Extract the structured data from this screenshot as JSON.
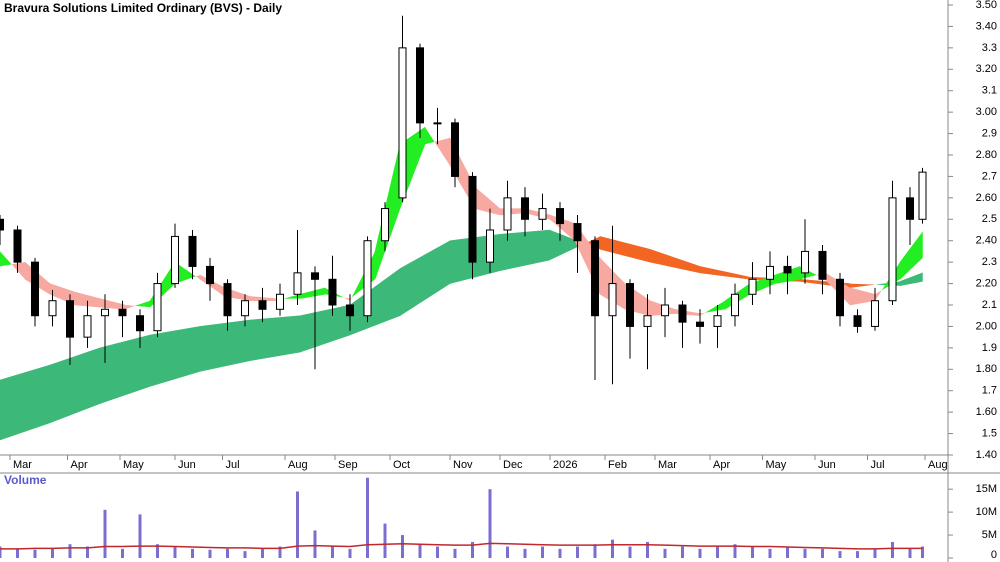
{
  "chart_data": {
    "type": "candlestick",
    "title": "Bravura Solutions Limited Ordinary (BVS) - Daily",
    "x": [
      0,
      7,
      14,
      21,
      28,
      35,
      42,
      49,
      56,
      63,
      70,
      77,
      84,
      91,
      98,
      105,
      112,
      119,
      126,
      133,
      140,
      147,
      154,
      161,
      168,
      175,
      182,
      189,
      196,
      203,
      210,
      217,
      224,
      231,
      238,
      245,
      252,
      259,
      266,
      273,
      280,
      287,
      294,
      301,
      308,
      315,
      322,
      329,
      336,
      343,
      350,
      357,
      364,
      369
    ],
    "open": [
      2.5,
      2.45,
      2.3,
      2.05,
      2.12,
      1.95,
      2.05,
      2.08,
      2.05,
      1.98,
      2.2,
      2.42,
      2.28,
      2.2,
      2.05,
      2.12,
      2.08,
      2.15,
      2.25,
      2.22,
      2.1,
      2.05,
      2.4,
      2.6,
      3.3,
      2.95,
      2.95,
      2.7,
      2.3,
      2.45,
      2.6,
      2.5,
      2.55,
      2.48,
      2.4,
      2.05,
      2.2,
      2.0,
      2.05,
      2.1,
      2.02,
      2.0,
      2.05,
      2.15,
      2.22,
      2.28,
      2.25,
      2.35,
      2.22,
      2.05,
      2.0,
      2.12,
      2.6,
      2.5
    ],
    "high": [
      2.52,
      2.47,
      2.32,
      2.17,
      2.15,
      2.12,
      2.15,
      2.12,
      2.08,
      2.25,
      2.48,
      2.45,
      2.32,
      2.22,
      2.15,
      2.18,
      2.2,
      2.45,
      2.28,
      2.33,
      2.15,
      2.42,
      2.58,
      3.45,
      3.32,
      3.02,
      2.97,
      2.72,
      2.55,
      2.68,
      2.65,
      2.62,
      2.58,
      2.52,
      2.42,
      2.47,
      2.22,
      2.15,
      2.18,
      2.12,
      2.08,
      2.1,
      2.2,
      2.3,
      2.35,
      2.33,
      2.5,
      2.38,
      2.25,
      2.08,
      2.18,
      2.68,
      2.65,
      2.74
    ],
    "low": [
      2.38,
      2.25,
      2.0,
      2.0,
      1.82,
      1.9,
      1.83,
      1.95,
      1.9,
      1.95,
      2.18,
      2.22,
      2.12,
      1.98,
      2.0,
      2.02,
      2.05,
      2.1,
      1.8,
      2.05,
      1.98,
      2.02,
      2.35,
      2.58,
      2.88,
      2.85,
      2.65,
      2.22,
      2.25,
      2.4,
      2.42,
      2.45,
      2.4,
      2.25,
      1.75,
      1.73,
      1.85,
      1.8,
      1.95,
      1.9,
      1.92,
      1.9,
      2.0,
      2.1,
      2.15,
      2.15,
      2.2,
      2.15,
      2.0,
      1.97,
      1.98,
      2.1,
      2.38,
      2.48
    ],
    "close": [
      2.45,
      2.3,
      2.05,
      2.12,
      1.95,
      2.05,
      2.08,
      2.05,
      1.98,
      2.2,
      2.42,
      2.28,
      2.2,
      2.05,
      2.12,
      2.08,
      2.15,
      2.25,
      2.22,
      2.1,
      2.05,
      2.4,
      2.55,
      3.3,
      2.95,
      2.95,
      2.7,
      2.3,
      2.45,
      2.6,
      2.5,
      2.55,
      2.48,
      2.4,
      2.05,
      2.2,
      2.0,
      2.05,
      2.1,
      2.02,
      2.0,
      2.05,
      2.15,
      2.22,
      2.28,
      2.25,
      2.35,
      2.22,
      2.05,
      2.0,
      2.12,
      2.6,
      2.5,
      2.72
    ],
    "up_color": "#ffffff",
    "down_color": "#000000",
    "xlim": [
      0,
      375
    ],
    "xticks": [
      {
        "value": 4,
        "label": "Mar"
      },
      {
        "value": 27,
        "label": "Apr"
      },
      {
        "value": 48,
        "label": "May"
      },
      {
        "value": 70,
        "label": "Jun"
      },
      {
        "value": 89,
        "label": "Jul"
      },
      {
        "value": 114,
        "label": "Aug"
      },
      {
        "value": 134,
        "label": "Sep"
      },
      {
        "value": 156,
        "label": "Oct"
      },
      {
        "value": 180,
        "label": "Nov"
      },
      {
        "value": 200,
        "label": "Dec"
      },
      {
        "value": 220,
        "label": "2026"
      },
      {
        "value": 242,
        "label": "Feb"
      },
      {
        "value": 262,
        "label": "Mar"
      },
      {
        "value": 284,
        "label": "Apr"
      },
      {
        "value": 305,
        "label": "May"
      },
      {
        "value": 326,
        "label": "Jun"
      },
      {
        "value": 347,
        "label": "Jul"
      },
      {
        "value": 370,
        "label": "Aug"
      }
    ],
    "ylim": [
      1.4,
      3.5
    ],
    "yticks": [
      {
        "value": 1.4,
        "label": "1.40"
      },
      1.5,
      {
        "value": 1.6,
        "label": "1.60"
      },
      1.7,
      {
        "value": 1.8,
        "label": "1.80"
      },
      1.9,
      {
        "value": 2.0,
        "label": "2.00"
      },
      2.1,
      {
        "value": 2.2,
        "label": "2.20"
      },
      2.3,
      {
        "value": 2.4,
        "label": "2.40"
      },
      2.5,
      {
        "value": 2.6,
        "label": "2.60"
      },
      2.7,
      {
        "value": 2.8,
        "label": "2.80"
      },
      2.9,
      {
        "value": 3.0,
        "label": "3.00"
      },
      3.1,
      {
        "value": 3.2,
        "label": "3.20"
      },
      3.3,
      {
        "value": 3.4,
        "label": "3.40"
      },
      {
        "value": 3.5,
        "label": "3.50"
      }
    ],
    "ribbons": [
      {
        "x": [
          0,
          20,
          40,
          60,
          80,
          100,
          120,
          140,
          160,
          180,
          200,
          220,
          240,
          260,
          280,
          300,
          320,
          340,
          360,
          369
        ],
        "fast": [
          1.75,
          1.82,
          1.9,
          1.96,
          2.0,
          2.03,
          2.05,
          2.1,
          2.27,
          2.4,
          2.43,
          2.45,
          2.36,
          2.3,
          2.25,
          2.22,
          2.21,
          2.18,
          2.21,
          2.25
        ],
        "slow": [
          1.47,
          1.55,
          1.64,
          1.72,
          1.79,
          1.84,
          1.88,
          1.96,
          2.05,
          2.2,
          2.26,
          2.31,
          2.42,
          2.36,
          2.28,
          2.23,
          2.22,
          2.2,
          2.19,
          2.21
        ],
        "up_color": "#3cb878",
        "down_color": "#f26522"
      },
      {
        "x": [
          0,
          10,
          20,
          30,
          40,
          50,
          60,
          70,
          80,
          90,
          100,
          110,
          120,
          130,
          140,
          150,
          160,
          170,
          180,
          190,
          200,
          210,
          220,
          230,
          240,
          250,
          260,
          270,
          280,
          290,
          300,
          310,
          320,
          330,
          340,
          350,
          360,
          369
        ],
        "fast": [
          2.35,
          2.22,
          2.15,
          2.1,
          2.09,
          2.08,
          2.12,
          2.3,
          2.22,
          2.14,
          2.12,
          2.12,
          2.15,
          2.18,
          2.12,
          2.35,
          2.85,
          2.93,
          2.75,
          2.55,
          2.52,
          2.53,
          2.5,
          2.4,
          2.15,
          2.08,
          2.05,
          2.06,
          2.05,
          2.12,
          2.2,
          2.24,
          2.28,
          2.22,
          2.1,
          2.12,
          2.3,
          2.44
        ],
        "slow": [
          2.28,
          2.3,
          2.2,
          2.16,
          2.13,
          2.1,
          2.09,
          2.2,
          2.24,
          2.18,
          2.14,
          2.13,
          2.13,
          2.15,
          2.13,
          2.22,
          2.55,
          2.85,
          2.88,
          2.65,
          2.55,
          2.55,
          2.52,
          2.48,
          2.32,
          2.2,
          2.12,
          2.08,
          2.06,
          2.08,
          2.15,
          2.2,
          2.22,
          2.25,
          2.18,
          2.15,
          2.22,
          2.32
        ],
        "up_color": "#22ee22",
        "down_color": "#f7a8a0"
      }
    ],
    "volume": {
      "label": "Volume",
      "color": "#7a6fd0",
      "values": [
        2500000,
        2000000,
        1800000,
        2200000,
        3000000,
        2500000,
        10500000,
        2000000,
        9500000,
        3000000,
        2500000,
        2000000,
        1800000,
        2000000,
        1500000,
        2000000,
        2500000,
        14500000,
        6000000,
        2500000,
        2000000,
        17500000,
        7500000,
        5000000,
        3000000,
        2500000,
        2000000,
        3500000,
        15000000,
        2500000,
        2000000,
        2500000,
        2000000,
        2500000,
        3000000,
        4000000,
        2500000,
        3500000,
        2000000,
        2500000,
        2000000,
        2500000,
        3000000,
        2500000,
        2000000,
        2500000,
        2000000,
        2000000,
        1500000,
        1500000,
        2000000,
        3500000,
        2000000,
        2500000
      ],
      "average": [
        2000000,
        2000000,
        2100000,
        2100000,
        2200000,
        2200000,
        2500000,
        2500000,
        2600000,
        2600000,
        2500000,
        2400000,
        2300000,
        2200000,
        2200000,
        2100000,
        2100000,
        2600000,
        2700000,
        2600000,
        2500000,
        2900000,
        3000000,
        3100000,
        3000000,
        2900000,
        2800000,
        2800000,
        3200000,
        3100000,
        3000000,
        2900000,
        2800000,
        2800000,
        2800000,
        2900000,
        2900000,
        2900000,
        2800000,
        2700000,
        2600000,
        2600000,
        2600000,
        2500000,
        2500000,
        2400000,
        2300000,
        2200000,
        2100000,
        2000000,
        2000000,
        2100000,
        2100000,
        2100000
      ],
      "average_color": "#c0282d",
      "ylim": [
        0,
        17000000
      ],
      "yticks": [
        0,
        {
          "value": 5000000,
          "label": "5M"
        },
        {
          "value": 10000000,
          "label": "10M"
        },
        {
          "value": 15000000,
          "label": "15M"
        }
      ]
    }
  }
}
